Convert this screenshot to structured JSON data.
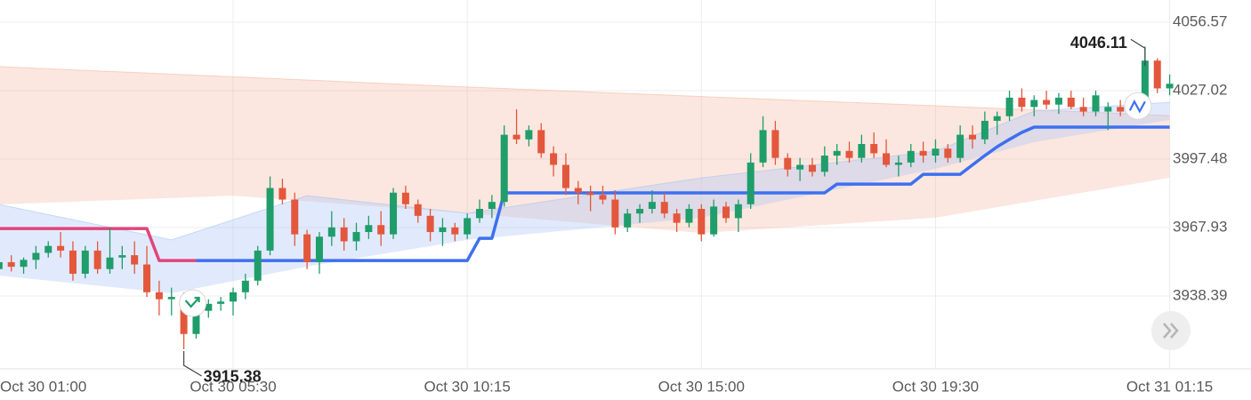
{
  "chart_data": {
    "type": "candlestick",
    "categories": [
      "Oct 30 01:00",
      null,
      null,
      null,
      null,
      null,
      null,
      null,
      null,
      null,
      null,
      null,
      null,
      null,
      null,
      null,
      null,
      null,
      null,
      "Oct 30 05:30",
      null,
      null,
      null,
      null,
      null,
      null,
      null,
      null,
      null,
      null,
      null,
      null,
      null,
      null,
      null,
      null,
      null,
      null,
      "Oct 30 10:15",
      null,
      null,
      null,
      null,
      null,
      null,
      null,
      null,
      null,
      null,
      null,
      null,
      null,
      null,
      null,
      null,
      null,
      null,
      "Oct 30 15:00",
      null,
      null,
      null,
      null,
      null,
      null,
      null,
      null,
      null,
      null,
      null,
      null,
      null,
      null,
      null,
      null,
      null,
      null,
      "Oct 30 19:30",
      null,
      null,
      null,
      null,
      null,
      null,
      null,
      null,
      null,
      null,
      null,
      null,
      null,
      null,
      null,
      null,
      null,
      null,
      "Oct 31 01:15"
    ],
    "open": [
      3950,
      3953,
      3951,
      3954,
      3957,
      3960,
      3958,
      3948,
      3958,
      3950,
      3955,
      3956,
      3952,
      3940,
      3937,
      3938,
      3922,
      3932,
      3935,
      3936,
      3940,
      3945,
      3958,
      3985,
      3980,
      3965,
      3953,
      3964,
      3968,
      3962,
      3966,
      3969,
      3965,
      3983,
      3978,
      3973,
      3966,
      3968,
      3965,
      3972,
      3976,
      3979,
      4008,
      4006,
      4010,
      4000,
      3995,
      3985,
      3983,
      3982,
      3980,
      3968,
      3974,
      3976,
      3979,
      3974,
      3970,
      3976,
      3965,
      3977,
      3972,
      3978,
      3996,
      4010,
      3998,
      3993,
      3995,
      3992,
      3999,
      4001,
      3998,
      4004,
      4000,
      3995,
      3996,
      4001,
      3999,
      4002,
      3998,
      4008,
      4006,
      4014,
      4016,
      4024,
      4020,
      4023,
      4021,
      4024,
      4020,
      4018,
      4018,
      4020,
      4018,
      4024,
      4040,
      4028
    ],
    "high": [
      3955,
      3956,
      3955,
      3960,
      3962,
      3966,
      3962,
      3960,
      3962,
      3968,
      3960,
      3962,
      3960,
      3945,
      3942,
      3940,
      3934,
      3937,
      3938,
      3942,
      3948,
      3960,
      3990,
      3989,
      3983,
      3967,
      3966,
      3975,
      3972,
      3970,
      3973,
      3975,
      3985,
      3986,
      3980,
      3976,
      3972,
      3970,
      3974,
      3980,
      3982,
      4012,
      4019,
      4012,
      4013,
      4003,
      4000,
      3988,
      3986,
      3986,
      3984,
      3976,
      3978,
      3984,
      3983,
      3976,
      3978,
      3978,
      3980,
      3979,
      3980,
      4000,
      4016,
      4014,
      4000,
      3998,
      3998,
      4003,
      4004,
      4005,
      4008,
      4009,
      4006,
      3999,
      4004,
      4005,
      4006,
      4004,
      4012,
      4012,
      4018,
      4018,
      4027,
      4028,
      4025,
      4027,
      4026,
      4027,
      4024,
      4027,
      4022,
      4023,
      4025,
      4046.11,
      4041,
      4034
    ],
    "low": [
      3948,
      3949,
      3948,
      3950,
      3955,
      3955,
      3945,
      3946,
      3948,
      3948,
      3950,
      3948,
      3938,
      3930,
      3930,
      3915.38,
      3920,
      3929,
      3932,
      3930,
      3937,
      3943,
      3956,
      3978,
      3960,
      3950,
      3948,
      3960,
      3958,
      3958,
      3963,
      3960,
      3963,
      3976,
      3970,
      3962,
      3960,
      3962,
      3963,
      3970,
      3972,
      3977,
      4004,
      4003,
      3998,
      3990,
      3982,
      3978,
      3975,
      3978,
      3965,
      3966,
      3970,
      3974,
      3972,
      3966,
      3968,
      3962,
      3964,
      3970,
      3966,
      3976,
      3994,
      3995,
      3990,
      3988,
      3990,
      3990,
      3995,
      3996,
      3996,
      3998,
      3994,
      3990,
      3994,
      3996,
      3996,
      3996,
      3996,
      4002,
      4004,
      4008,
      4014,
      4018,
      4016,
      4019,
      4017,
      4019,
      4016,
      4016,
      4010,
      4016,
      4016,
      4022,
      4026,
      4025
    ],
    "close": [
      3953,
      3951,
      3954,
      3957,
      3960,
      3958,
      3948,
      3958,
      3950,
      3955,
      3956,
      3952,
      3940,
      3937,
      3938,
      3922,
      3932,
      3935,
      3936,
      3940,
      3945,
      3958,
      3985,
      3980,
      3965,
      3953,
      3964,
      3968,
      3962,
      3966,
      3969,
      3965,
      3983,
      3978,
      3973,
      3966,
      3968,
      3965,
      3972,
      3976,
      3979,
      4008,
      4006,
      4010,
      4000,
      3995,
      3985,
      3983,
      3982,
      3980,
      3968,
      3974,
      3976,
      3979,
      3974,
      3970,
      3976,
      3965,
      3977,
      3972,
      3978,
      3996,
      4010,
      3998,
      3993,
      3995,
      3992,
      3999,
      4001,
      3998,
      4004,
      4000,
      3995,
      3996,
      4001,
      3999,
      4002,
      3998,
      4008,
      4006,
      4014,
      4016,
      4024,
      4020,
      4023,
      4021,
      4024,
      4020,
      4018,
      4025,
      4020,
      4018,
      4024,
      4040,
      4028,
      4030
    ],
    "up_color": "#1f9d6a",
    "down_color": "#e3573d",
    "series": [
      {
        "color": "#e0457b",
        "values": [
          3967.5,
          3967.5,
          3967.5,
          3967.5,
          3967.5,
          3967.5,
          3967.5,
          3967.5,
          3967.5,
          3967.5,
          3967.5,
          3967.5,
          3967.5,
          3953.7,
          3953.7,
          3953.7,
          3953.7,
          null,
          null,
          null,
          null,
          null,
          null,
          null,
          null,
          null,
          null,
          null,
          null,
          null,
          null,
          null,
          null,
          null,
          null,
          null,
          null,
          null,
          null,
          null,
          null,
          null,
          null,
          null,
          null,
          null,
          null,
          null,
          null,
          null,
          null,
          null,
          null,
          null,
          null,
          null,
          null,
          null,
          null,
          null,
          null,
          null,
          null,
          null,
          null,
          null,
          null,
          null,
          null,
          null,
          null,
          null,
          null,
          null,
          null,
          null,
          null,
          null,
          null,
          null,
          null,
          null,
          null,
          null,
          null,
          null,
          null,
          null,
          null,
          null,
          null,
          null,
          null,
          null,
          null,
          null
        ]
      },
      {
        "color": "#3d6ff0",
        "values": [
          null,
          null,
          null,
          null,
          null,
          null,
          null,
          null,
          null,
          null,
          null,
          null,
          null,
          null,
          null,
          null,
          3953.7,
          3953.7,
          3953.7,
          3953.7,
          3953.7,
          3953.7,
          3953.7,
          3953.7,
          3953.7,
          3953.7,
          3953.7,
          3953.7,
          3953.7,
          3953.7,
          3953.7,
          3953.7,
          3953.7,
          3953.7,
          3953.7,
          3953.7,
          3953.7,
          3953.7,
          3953.7,
          3963.3,
          3963.3,
          3982.9,
          3982.9,
          3982.9,
          3982.9,
          3982.9,
          3982.9,
          3982.9,
          3982.9,
          3982.9,
          3982.9,
          3982.9,
          3982.9,
          3982.9,
          3982.9,
          3982.9,
          3982.9,
          3982.9,
          3982.9,
          3982.9,
          3982.9,
          3982.9,
          3982.9,
          3982.9,
          3982.9,
          3982.9,
          3982.9,
          3982.9,
          3986.7,
          3986.7,
          3986.7,
          3986.7,
          3986.7,
          3986.7,
          3986.7,
          3990.9,
          3990.9,
          3990.9,
          3990.9,
          3995,
          3999,
          4002.8,
          4006,
          4009,
          4011.3,
          4011.3,
          4011.3,
          4011.3,
          4011.3,
          4011.3,
          4011.3,
          4011.3,
          4011.3,
          4011.3,
          4011.3,
          4011.3
        ]
      }
    ],
    "bands": [
      {
        "color": "#f4b9a4",
        "x": [
          0,
          19,
          38,
          57,
          76,
          95
        ],
        "upper": [
          4037.4,
          4033,
          4028.6,
          4024.5,
          4020.5,
          4016.3
        ],
        "lower": [
          3977.9,
          3981.7,
          3974.1,
          3965.6,
          3972.2,
          3989.4
        ]
      },
      {
        "color": "#a9c4f5",
        "x": [
          0,
          14,
          25,
          38,
          57,
          76,
          84,
          95
        ],
        "upper": [
          3977.9,
          3962.6,
          3981.7,
          3974.1,
          3989.4,
          4000.9,
          4018.2,
          4022
        ],
        "lower": [
          3947.2,
          3939.6,
          3951.1,
          3962.6,
          3972.2,
          3993.3,
          4004.8,
          4014.4
        ]
      }
    ],
    "ylim": [
      3906.93,
      4066.16
    ],
    "yticks": [
      3938.39,
      3967.93,
      3997.48,
      4027.02,
      4056.57
    ],
    "grid": true
  }
}
